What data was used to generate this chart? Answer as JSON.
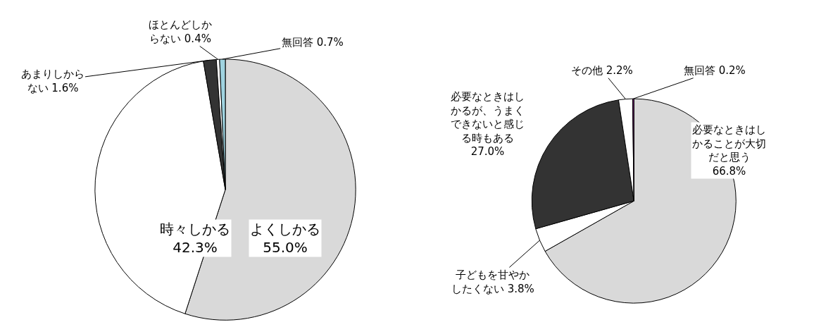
{
  "chart_data": [
    {
      "type": "pie",
      "categories": [
        "よくしかる",
        "時々しかる",
        "あまりしからない",
        "ほとんどしからない",
        "無回答"
      ],
      "values": [
        55.0,
        42.3,
        1.6,
        0.4,
        0.7
      ],
      "value_labels": [
        "55.0%",
        "42.3%",
        "1.6%",
        "0.4%",
        "0.7%"
      ],
      "colors": [
        "#d9d9d9",
        "#ffffff",
        "#333333",
        "#ffffff",
        "#9fd3e0"
      ]
    },
    {
      "type": "pie",
      "categories": [
        "必要なときはしかることが大切だと思う",
        "子どもを甘やかしたくない",
        "必要なときはしかるが、うまくできないと感じる時もある",
        "その他",
        "無回答"
      ],
      "values": [
        66.8,
        3.8,
        27.0,
        2.2,
        0.2
      ],
      "value_labels": [
        "66.8%",
        "3.8%",
        "27.0%",
        "2.2%",
        "0.2%"
      ],
      "colors": [
        "#d9d9d9",
        "#ffffff",
        "#333333",
        "#ffffff",
        "#800080"
      ]
    }
  ]
}
